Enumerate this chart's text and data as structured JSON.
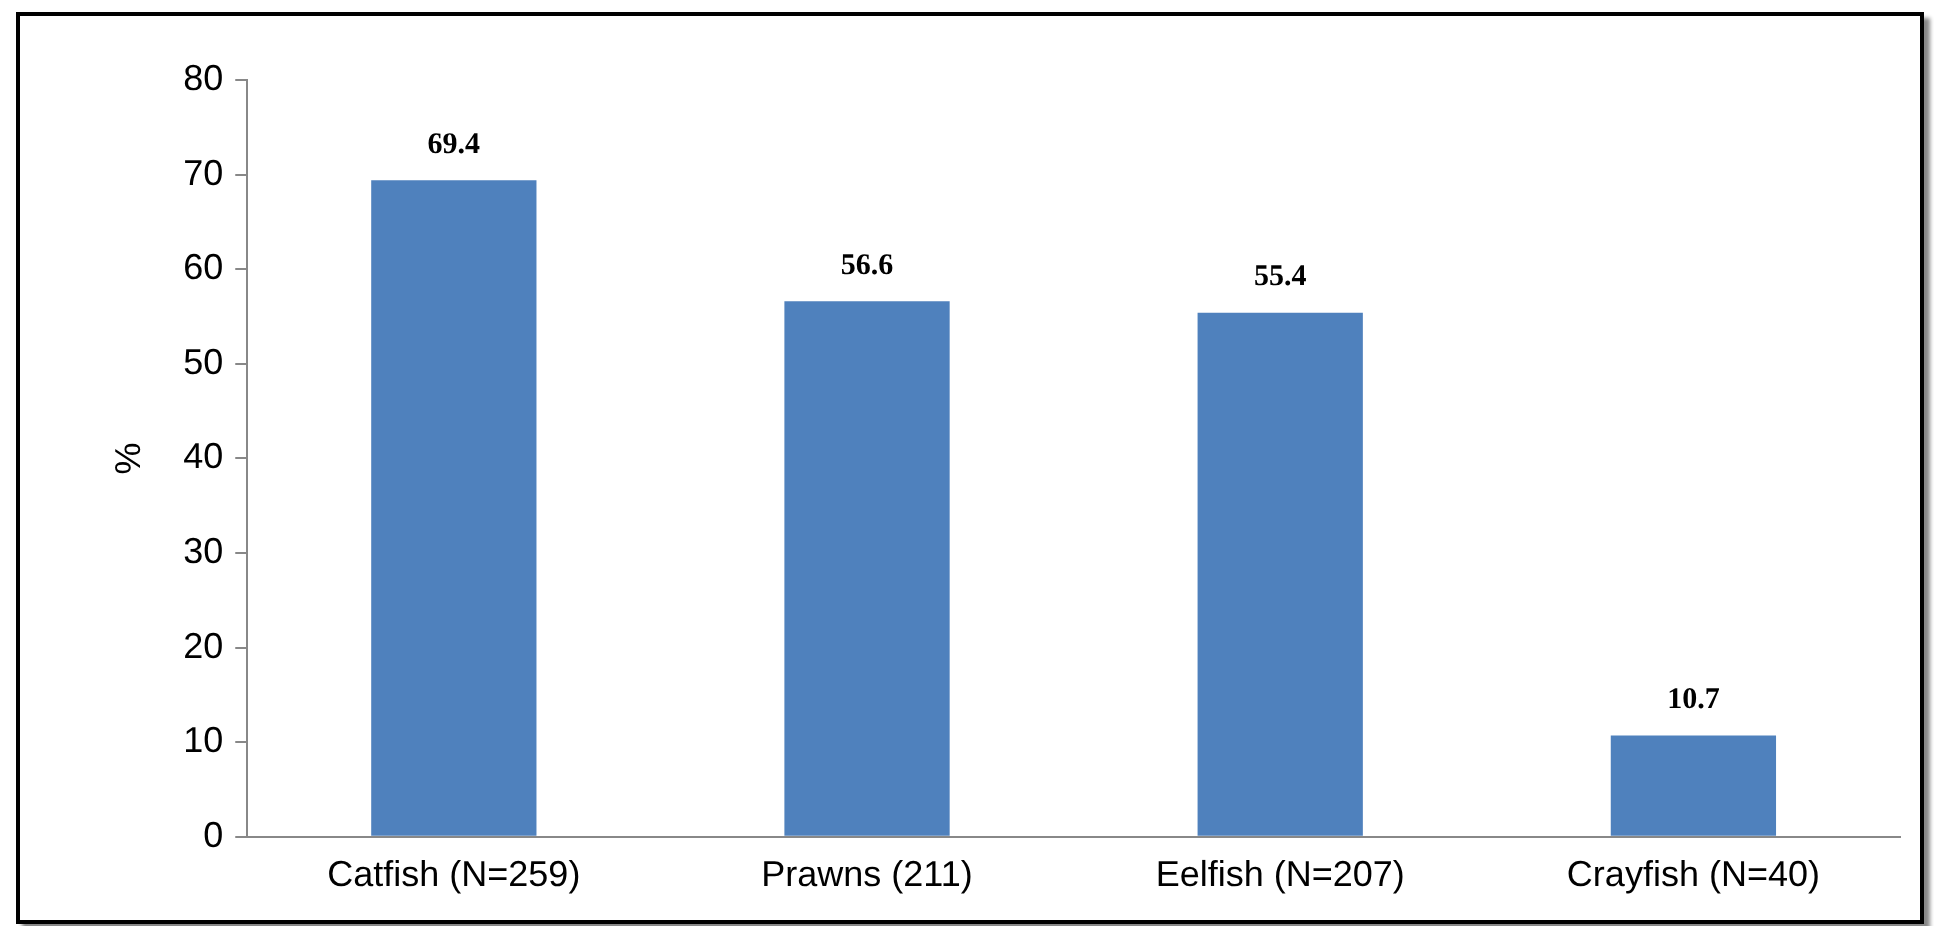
{
  "chart_data": {
    "type": "bar",
    "ylabel": "%",
    "categories": [
      "Catfish (N=259)",
      "Prawns (211)",
      "Eelfish (N=207)",
      "Crayfish (N=40)"
    ],
    "values": [
      69.4,
      56.6,
      55.4,
      10.7
    ],
    "color": "#4f81bd",
    "ylim": [
      0,
      80
    ],
    "yticks": [
      0,
      10,
      20,
      30,
      40,
      50,
      60,
      70,
      80
    ],
    "grid": false,
    "legend": false,
    "data_labels": true
  }
}
